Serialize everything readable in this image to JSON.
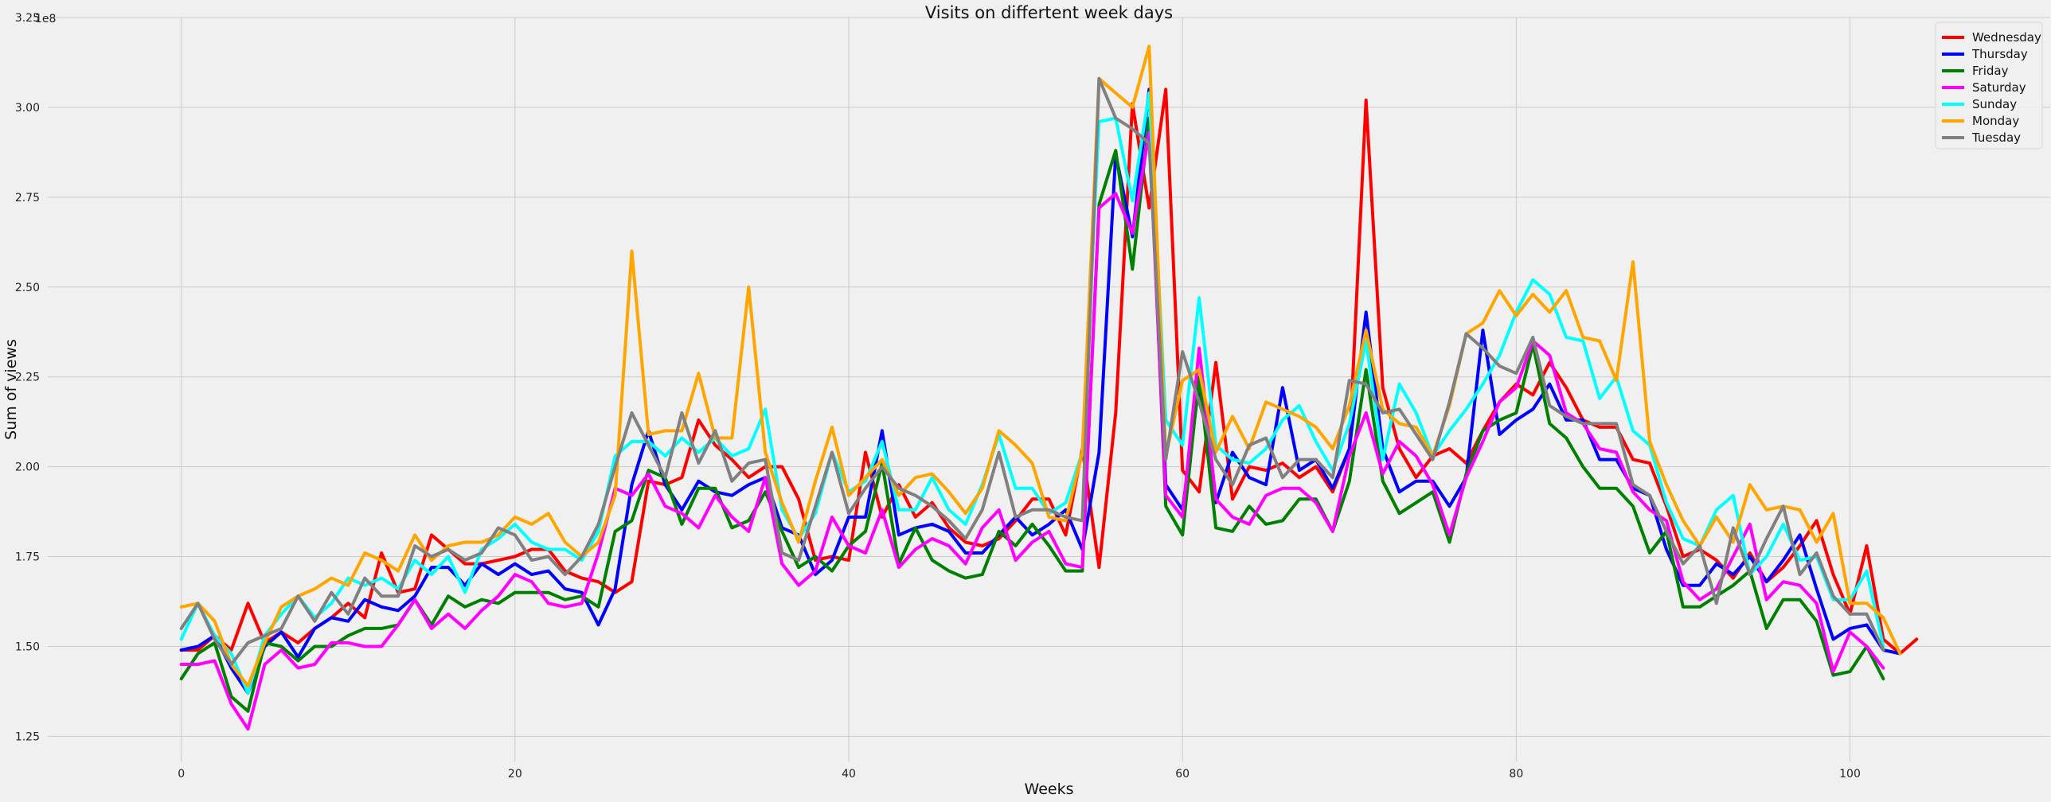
{
  "chart_data": {
    "type": "line",
    "title": "Visits on differtent week days",
    "xlabel": "Weeks",
    "ylabel": "Sum of views",
    "y_exponent_label": "1e8",
    "xlim": [
      -8,
      112
    ],
    "ylim": [
      1.18,
      3.25
    ],
    "xticks": [
      0,
      20,
      40,
      60,
      80,
      100
    ],
    "yticks": [
      1.25,
      1.5,
      1.75,
      2.0,
      2.25,
      2.5,
      2.75,
      3.0,
      3.25
    ],
    "ytick_labels": [
      "1.25",
      "1.50",
      "1.75",
      "2.00",
      "2.25",
      "2.50",
      "2.75",
      "3.00",
      "3.25"
    ],
    "grid": true,
    "legend_position": "top-right",
    "series": [
      {
        "name": "Wednesday",
        "color": "#ff0000",
        "values": [
          1.49,
          1.49,
          1.53,
          1.49,
          1.62,
          1.51,
          1.54,
          1.51,
          1.55,
          1.58,
          1.62,
          1.58,
          1.76,
          1.65,
          1.66,
          1.81,
          1.77,
          1.73,
          1.73,
          1.74,
          1.75,
          1.77,
          1.77,
          1.71,
          1.69,
          1.68,
          1.65,
          1.68,
          1.96,
          1.95,
          1.97,
          2.13,
          2.06,
          2.02,
          1.97,
          2.0,
          2.0,
          1.91,
          1.74,
          1.75,
          1.74,
          2.04,
          1.86,
          1.95,
          1.86,
          1.9,
          1.83,
          1.79,
          1.78,
          1.8,
          1.85,
          1.91,
          1.91,
          1.81,
          2.05,
          1.72,
          2.15,
          3.01,
          2.72,
          3.05,
          1.99,
          1.93,
          2.29,
          1.91,
          2.0,
          1.99,
          2.01,
          1.97,
          2.0,
          1.93,
          2.05,
          3.02,
          2.22,
          2.05,
          1.97,
          2.03,
          2.05,
          2.01,
          2.1,
          2.18,
          2.23,
          2.2,
          2.29,
          2.22,
          2.13,
          2.11,
          2.11,
          2.02,
          2.01,
          1.89,
          1.75,
          1.77,
          1.74,
          1.69,
          1.76,
          1.68,
          1.72,
          1.78,
          1.85,
          1.7,
          1.59,
          1.78,
          1.52,
          1.48,
          1.52
        ]
      },
      {
        "name": "Thursday",
        "color": "#0000ff",
        "values": [
          1.49,
          1.5,
          1.53,
          1.44,
          1.37,
          1.5,
          1.54,
          1.47,
          1.55,
          1.58,
          1.57,
          1.63,
          1.61,
          1.6,
          1.64,
          1.72,
          1.72,
          1.67,
          1.73,
          1.7,
          1.73,
          1.7,
          1.71,
          1.66,
          1.65,
          1.56,
          1.66,
          1.95,
          2.1,
          1.95,
          1.88,
          1.96,
          1.93,
          1.92,
          1.95,
          1.97,
          1.83,
          1.81,
          1.7,
          1.74,
          1.86,
          1.86,
          2.1,
          1.81,
          1.83,
          1.84,
          1.82,
          1.76,
          1.76,
          1.81,
          1.86,
          1.81,
          1.84,
          1.88,
          1.77,
          2.04,
          2.87,
          2.64,
          3.05,
          1.95,
          1.88,
          2.23,
          1.9,
          2.04,
          1.97,
          1.95,
          2.22,
          1.99,
          2.02,
          1.94,
          2.05,
          2.43,
          2.05,
          1.93,
          1.96,
          1.96,
          1.89,
          1.97,
          2.38,
          2.09,
          2.13,
          2.16,
          2.23,
          2.13,
          2.13,
          2.02,
          2.02,
          1.94,
          1.92,
          1.77,
          1.67,
          1.67,
          1.73,
          1.7,
          1.75,
          1.68,
          1.74,
          1.81,
          1.66,
          1.52,
          1.55,
          1.56,
          1.49,
          1.48
        ]
      },
      {
        "name": "Friday",
        "color": "#008000",
        "values": [
          1.41,
          1.48,
          1.51,
          1.36,
          1.32,
          1.51,
          1.5,
          1.46,
          1.5,
          1.5,
          1.53,
          1.55,
          1.55,
          1.56,
          1.63,
          1.56,
          1.64,
          1.61,
          1.63,
          1.62,
          1.65,
          1.65,
          1.65,
          1.63,
          1.64,
          1.61,
          1.82,
          1.85,
          1.99,
          1.97,
          1.84,
          1.94,
          1.94,
          1.83,
          1.85,
          1.93,
          1.82,
          1.72,
          1.75,
          1.71,
          1.78,
          1.82,
          2.01,
          1.73,
          1.83,
          1.74,
          1.71,
          1.69,
          1.7,
          1.82,
          1.78,
          1.84,
          1.78,
          1.71,
          1.71,
          2.73,
          2.88,
          2.55,
          2.97,
          1.89,
          1.81,
          2.25,
          1.83,
          1.82,
          1.89,
          1.84,
          1.85,
          1.91,
          1.91,
          1.82,
          1.96,
          2.27,
          1.96,
          1.87,
          1.9,
          1.93,
          1.79,
          1.98,
          2.1,
          2.13,
          2.15,
          2.34,
          2.12,
          2.08,
          2.0,
          1.94,
          1.94,
          1.89,
          1.76,
          1.82,
          1.61,
          1.61,
          1.64,
          1.67,
          1.71,
          1.55,
          1.63,
          1.63,
          1.57,
          1.42,
          1.43,
          1.5,
          1.41
        ]
      },
      {
        "name": "Saturday",
        "color": "#ff00ff",
        "values": [
          1.45,
          1.45,
          1.46,
          1.34,
          1.27,
          1.45,
          1.49,
          1.44,
          1.45,
          1.51,
          1.51,
          1.5,
          1.5,
          1.56,
          1.63,
          1.55,
          1.59,
          1.55,
          1.6,
          1.64,
          1.7,
          1.68,
          1.62,
          1.61,
          1.62,
          1.76,
          1.94,
          1.92,
          1.98,
          1.89,
          1.87,
          1.83,
          1.92,
          1.86,
          1.82,
          1.97,
          1.73,
          1.67,
          1.71,
          1.86,
          1.78,
          1.76,
          1.88,
          1.72,
          1.77,
          1.8,
          1.78,
          1.73,
          1.83,
          1.88,
          1.74,
          1.79,
          1.82,
          1.73,
          1.72,
          2.72,
          2.76,
          2.65,
          2.93,
          1.92,
          1.86,
          2.33,
          1.91,
          1.86,
          1.84,
          1.92,
          1.94,
          1.94,
          1.9,
          1.82,
          2.03,
          2.15,
          1.98,
          2.07,
          2.03,
          1.95,
          1.81,
          1.97,
          2.07,
          2.18,
          2.22,
          2.35,
          2.31,
          2.15,
          2.12,
          2.05,
          2.04,
          1.93,
          1.88,
          1.85,
          1.68,
          1.63,
          1.66,
          1.75,
          1.84,
          1.63,
          1.68,
          1.67,
          1.62,
          1.43,
          1.54,
          1.5,
          1.44
        ]
      },
      {
        "name": "Sunday",
        "color": "#00ffff",
        "values": [
          1.52,
          1.62,
          1.53,
          1.48,
          1.37,
          1.53,
          1.59,
          1.64,
          1.58,
          1.62,
          1.69,
          1.67,
          1.69,
          1.66,
          1.74,
          1.7,
          1.75,
          1.65,
          1.77,
          1.8,
          1.84,
          1.79,
          1.77,
          1.77,
          1.74,
          1.82,
          2.03,
          2.07,
          2.07,
          2.03,
          2.08,
          2.04,
          2.08,
          2.03,
          2.05,
          2.16,
          1.88,
          1.8,
          1.87,
          2.04,
          1.93,
          1.96,
          2.07,
          1.88,
          1.88,
          1.97,
          1.88,
          1.84,
          1.95,
          2.09,
          1.94,
          1.94,
          1.87,
          1.9,
          2.04,
          2.96,
          2.97,
          2.74,
          3.04,
          2.13,
          2.06,
          2.47,
          2.06,
          2.02,
          2.01,
          2.05,
          2.13,
          2.17,
          2.07,
          1.99,
          2.12,
          2.35,
          2.02,
          2.23,
          2.15,
          2.03,
          2.1,
          2.16,
          2.23,
          2.31,
          2.43,
          2.52,
          2.48,
          2.36,
          2.35,
          2.19,
          2.25,
          2.1,
          2.06,
          1.9,
          1.8,
          1.78,
          1.88,
          1.92,
          1.7,
          1.75,
          1.84,
          1.74,
          1.75,
          1.63,
          1.63,
          1.71,
          1.5
        ]
      },
      {
        "name": "Monday",
        "color": "#ffa500",
        "values": [
          1.61,
          1.62,
          1.57,
          1.45,
          1.39,
          1.51,
          1.61,
          1.64,
          1.66,
          1.69,
          1.67,
          1.76,
          1.74,
          1.71,
          1.81,
          1.74,
          1.78,
          1.79,
          1.79,
          1.81,
          1.86,
          1.84,
          1.87,
          1.79,
          1.75,
          1.79,
          1.92,
          2.6,
          2.09,
          2.1,
          2.1,
          2.26,
          2.08,
          2.08,
          2.5,
          2.04,
          1.9,
          1.79,
          1.96,
          2.11,
          1.92,
          1.97,
          2.02,
          1.92,
          1.97,
          1.98,
          1.93,
          1.87,
          1.94,
          2.1,
          2.06,
          2.01,
          1.86,
          1.85,
          2.04,
          3.08,
          3.04,
          3.0,
          3.17,
          2.03,
          2.24,
          2.27,
          2.04,
          2.14,
          2.05,
          2.18,
          2.16,
          2.14,
          2.11,
          2.05,
          2.17,
          2.38,
          2.16,
          2.12,
          2.11,
          2.03,
          2.17,
          2.37,
          2.4,
          2.49,
          2.42,
          2.48,
          2.43,
          2.49,
          2.36,
          2.35,
          2.24,
          2.57,
          2.07,
          1.95,
          1.85,
          1.78,
          1.86,
          1.79,
          1.95,
          1.88,
          1.89,
          1.88,
          1.79,
          1.87,
          1.62,
          1.62,
          1.58,
          1.48
        ]
      },
      {
        "name": "Tuesday",
        "color": "#808080",
        "values": [
          1.55,
          1.62,
          1.52,
          1.45,
          1.51,
          1.53,
          1.55,
          1.64,
          1.57,
          1.65,
          1.59,
          1.69,
          1.64,
          1.64,
          1.78,
          1.75,
          1.77,
          1.74,
          1.76,
          1.83,
          1.81,
          1.74,
          1.75,
          1.7,
          1.75,
          1.84,
          2.0,
          2.15,
          2.06,
          1.97,
          2.15,
          2.01,
          2.1,
          1.96,
          2.01,
          2.02,
          1.76,
          1.74,
          1.89,
          2.04,
          1.87,
          1.94,
          2.0,
          1.94,
          1.92,
          1.89,
          1.85,
          1.8,
          1.88,
          2.04,
          1.86,
          1.88,
          1.88,
          1.86,
          1.85,
          3.08,
          2.97,
          2.94,
          2.9,
          2.02,
          2.32,
          2.18,
          2.02,
          1.95,
          2.06,
          2.08,
          1.97,
          2.02,
          2.02,
          1.97,
          2.24,
          2.23,
          2.15,
          2.16,
          2.09,
          2.02,
          2.18,
          2.37,
          2.33,
          2.28,
          2.26,
          2.36,
          2.17,
          2.14,
          2.12,
          2.12,
          2.12,
          1.95,
          1.92,
          1.82,
          1.73,
          1.78,
          1.62,
          1.83,
          1.7,
          1.8,
          1.89,
          1.7,
          1.76,
          1.64,
          1.59,
          1.59,
          1.49
        ]
      }
    ]
  }
}
